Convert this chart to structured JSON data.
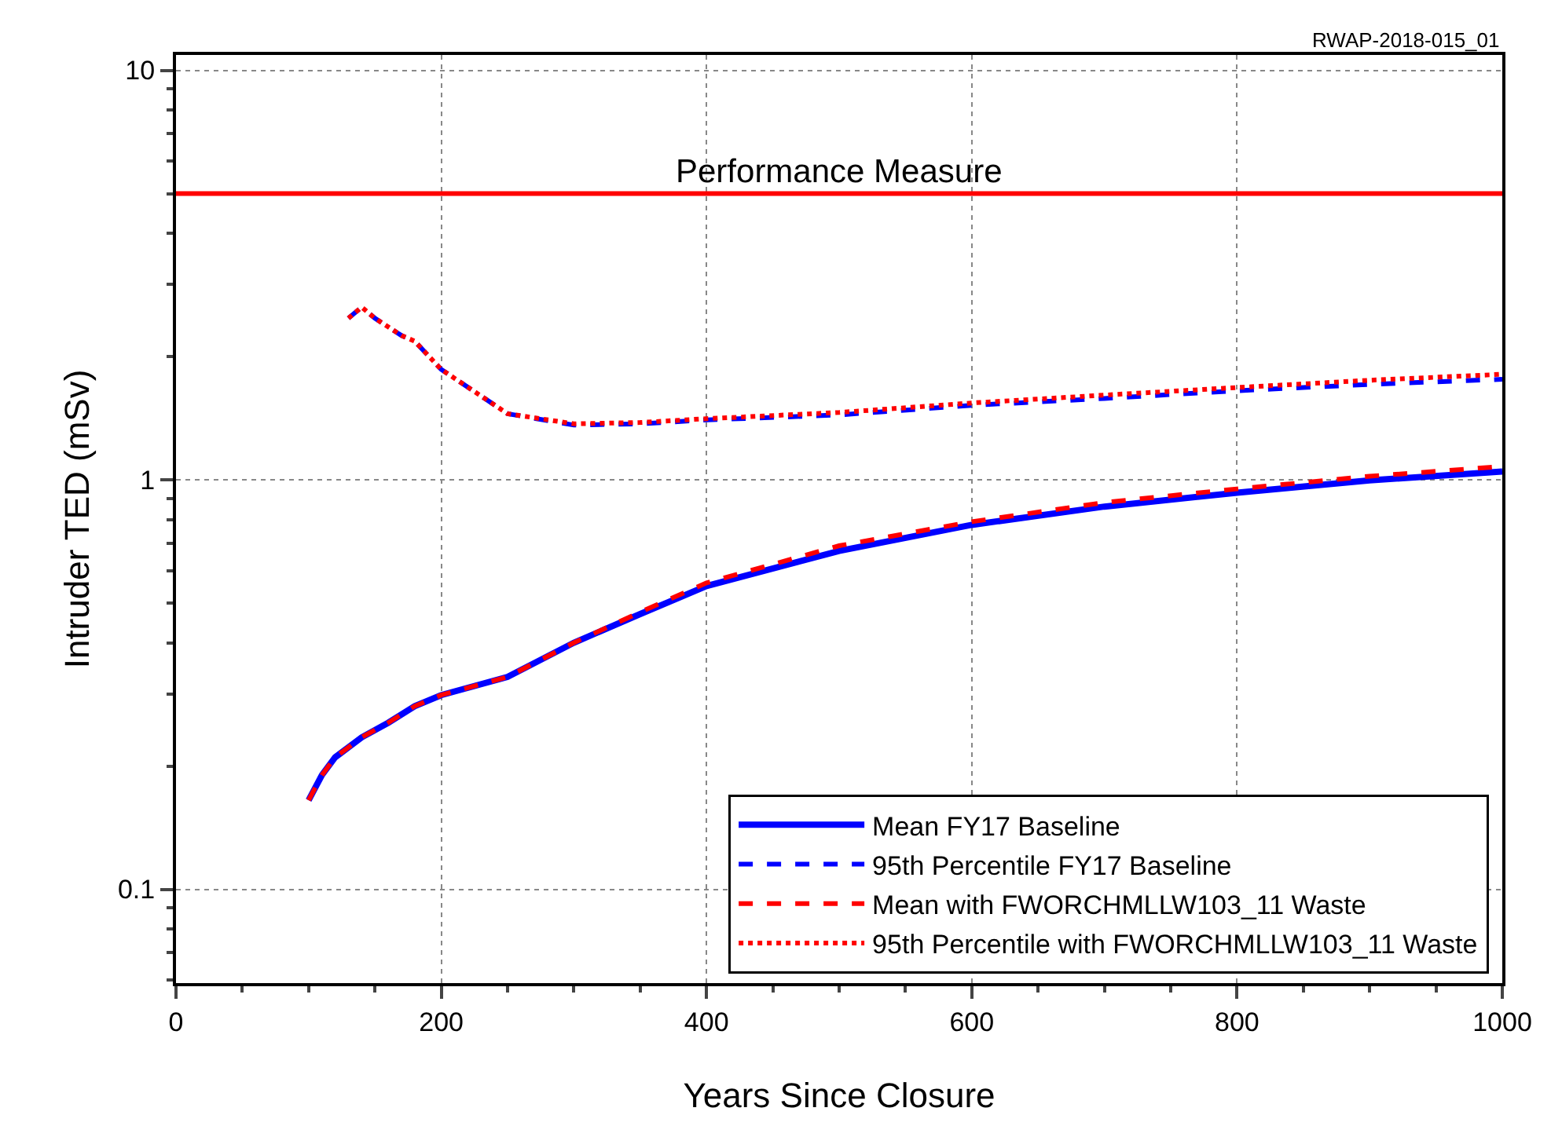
{
  "chart_data": {
    "type": "line",
    "xlabel": "Years Since Closure",
    "ylabel": "Intruder TED (mSv)",
    "annotations": [
      "RWAP-2018-015_01"
    ],
    "xlim": [
      0,
      1000
    ],
    "xticks": [
      0,
      200,
      400,
      600,
      800,
      1000
    ],
    "ylim": [
      0.059,
      10.9
    ],
    "yticks": [
      0.1,
      1,
      10
    ],
    "log": "y",
    "grid": true,
    "legend": "bottom right",
    "ref_lines": [
      {
        "axis": "y",
        "value": 5,
        "label": "Performance Measure",
        "color": "#ff0000",
        "line_style": "solid"
      }
    ],
    "series": [
      {
        "name": "Mean FY17 Baseline",
        "color": "#0000ff",
        "line_style": "solid",
        "x": [
          100,
          110,
          120,
          140,
          160,
          180,
          200,
          250,
          300,
          350,
          400,
          500,
          600,
          700,
          800,
          900,
          1000
        ],
        "values": [
          0.165,
          0.19,
          0.21,
          0.235,
          0.255,
          0.28,
          0.298,
          0.33,
          0.4,
          0.47,
          0.55,
          0.67,
          0.776,
          0.86,
          0.93,
          0.997,
          1.047
        ]
      },
      {
        "name": "95th Percentile FY17 Baseline",
        "color": "#0000ff",
        "line_style": "dashed",
        "x": [
          130,
          140,
          150,
          170,
          180,
          200,
          250,
          300,
          350,
          400,
          500,
          600,
          700,
          800,
          900,
          1000
        ],
        "values": [
          2.48,
          2.64,
          2.48,
          2.25,
          2.18,
          1.86,
          1.45,
          1.36,
          1.37,
          1.4,
          1.44,
          1.52,
          1.58,
          1.65,
          1.71,
          1.76
        ]
      },
      {
        "name": "Mean with FWORCHMLLW103_11 Waste",
        "color": "#ff0000",
        "line_style": "dashed",
        "x": [
          100,
          110,
          120,
          140,
          160,
          180,
          200,
          250,
          300,
          350,
          400,
          500,
          600,
          700,
          800,
          900,
          1000
        ],
        "values": [
          0.165,
          0.19,
          0.21,
          0.235,
          0.255,
          0.28,
          0.298,
          0.33,
          0.4,
          0.475,
          0.56,
          0.69,
          0.79,
          0.88,
          0.95,
          1.02,
          1.078
        ]
      },
      {
        "name": "95th Percentile with FWORCHMLLW103_11 Waste",
        "color": "#ff0000",
        "line_style": "dotted",
        "x": [
          130,
          140,
          150,
          170,
          180,
          200,
          250,
          300,
          350,
          400,
          500,
          600,
          700,
          800,
          900,
          1000
        ],
        "values": [
          2.48,
          2.64,
          2.48,
          2.25,
          2.18,
          1.86,
          1.45,
          1.37,
          1.38,
          1.41,
          1.46,
          1.54,
          1.61,
          1.68,
          1.75,
          1.81
        ]
      }
    ]
  }
}
